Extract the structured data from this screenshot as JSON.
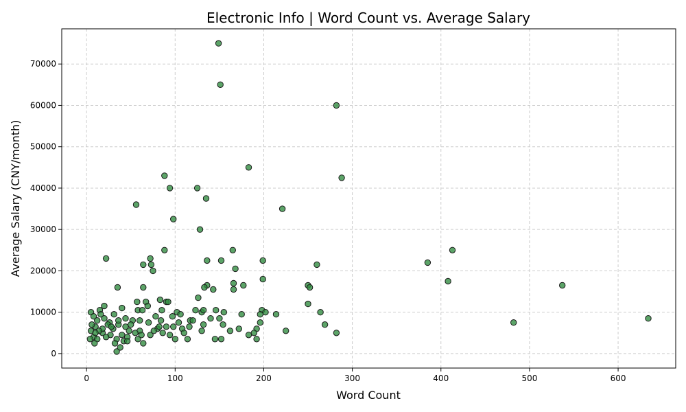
{
  "chart_data": {
    "type": "scatter",
    "title": "Electronic Info | Word Count vs. Average Salary",
    "xlabel": "Word Count",
    "ylabel": "Average Salary (CNY/month)",
    "xlim": [
      -28,
      665
    ],
    "ylim": [
      -3500,
      78500
    ],
    "xticks": [
      0,
      100,
      200,
      300,
      400,
      500,
      600
    ],
    "yticks": [
      0,
      10000,
      20000,
      30000,
      40000,
      50000,
      60000,
      70000
    ],
    "grid": true,
    "point_color": "#2e8b3e",
    "point_edge_color": "#1a1a1a",
    "points": [
      [
        149,
        75000
      ],
      [
        151,
        65000
      ],
      [
        282,
        60000
      ],
      [
        183,
        45000
      ],
      [
        88,
        43000
      ],
      [
        288,
        42500
      ],
      [
        94,
        40000
      ],
      [
        125,
        40000
      ],
      [
        135,
        37500
      ],
      [
        56,
        36000
      ],
      [
        221,
        35000
      ],
      [
        98,
        32500
      ],
      [
        128,
        30000
      ],
      [
        88,
        25000
      ],
      [
        165,
        25000
      ],
      [
        413,
        25000
      ],
      [
        22,
        23000
      ],
      [
        72,
        23000
      ],
      [
        64,
        21500
      ],
      [
        73,
        21500
      ],
      [
        136,
        22500
      ],
      [
        152,
        22500
      ],
      [
        199,
        22500
      ],
      [
        260,
        21500
      ],
      [
        385,
        22000
      ],
      [
        168,
        20500
      ],
      [
        75,
        20000
      ],
      [
        199,
        18000
      ],
      [
        408,
        17500
      ],
      [
        136,
        16500
      ],
      [
        166,
        17000
      ],
      [
        177,
        16500
      ],
      [
        250,
        16500
      ],
      [
        252,
        16000
      ],
      [
        537,
        16500
      ],
      [
        35,
        16000
      ],
      [
        64,
        16000
      ],
      [
        133,
        16000
      ],
      [
        143,
        15500
      ],
      [
        166,
        15500
      ],
      [
        126,
        13500
      ],
      [
        57,
        12500
      ],
      [
        67,
        12500
      ],
      [
        83,
        13000
      ],
      [
        90,
        12500
      ],
      [
        92,
        12500
      ],
      [
        250,
        12000
      ],
      [
        20,
        11500
      ],
      [
        40,
        11000
      ],
      [
        69,
        11500
      ],
      [
        5,
        10000
      ],
      [
        15,
        10500
      ],
      [
        58,
        10500
      ],
      [
        63,
        10500
      ],
      [
        85,
        10500
      ],
      [
        102,
        10000
      ],
      [
        106,
        9500
      ],
      [
        123,
        10500
      ],
      [
        130,
        10000
      ],
      [
        132,
        10500
      ],
      [
        146,
        10500
      ],
      [
        155,
        10000
      ],
      [
        198,
        10500
      ],
      [
        202,
        10000
      ],
      [
        264,
        10000
      ],
      [
        482,
        7500
      ],
      [
        634,
        8500
      ],
      [
        8,
        9000
      ],
      [
        31,
        9500
      ],
      [
        44,
        8500
      ],
      [
        52,
        8000
      ],
      [
        78,
        9000
      ],
      [
        97,
        9000
      ],
      [
        140,
        8500
      ],
      [
        150,
        8500
      ],
      [
        175,
        9500
      ],
      [
        196,
        9500
      ],
      [
        214,
        9500
      ],
      [
        12,
        8000
      ],
      [
        26,
        7500
      ],
      [
        36,
        7000
      ],
      [
        60,
        8000
      ],
      [
        70,
        7500
      ],
      [
        84,
        8000
      ],
      [
        104,
        7500
      ],
      [
        117,
        8000
      ],
      [
        132,
        7000
      ],
      [
        154,
        7000
      ],
      [
        196,
        7500
      ],
      [
        269,
        7000
      ],
      [
        10,
        6500
      ],
      [
        30,
        6000
      ],
      [
        48,
        5500
      ],
      [
        60,
        5500
      ],
      [
        80,
        6000
      ],
      [
        90,
        6500
      ],
      [
        108,
        6000
      ],
      [
        116,
        6500
      ],
      [
        130,
        5500
      ],
      [
        162,
        5500
      ],
      [
        172,
        6000
      ],
      [
        192,
        6000
      ],
      [
        225,
        5500
      ],
      [
        282,
        5000
      ],
      [
        5,
        5500
      ],
      [
        18,
        5000
      ],
      [
        27,
        4500
      ],
      [
        40,
        4500
      ],
      [
        55,
        5000
      ],
      [
        72,
        4500
      ],
      [
        86,
        5000
      ],
      [
        94,
        4500
      ],
      [
        110,
        5000
      ],
      [
        183,
        4500
      ],
      [
        189,
        5000
      ],
      [
        8,
        4000
      ],
      [
        22,
        4000
      ],
      [
        34,
        3500
      ],
      [
        46,
        4000
      ],
      [
        58,
        3500
      ],
      [
        100,
        3500
      ],
      [
        114,
        3500
      ],
      [
        145,
        3500
      ],
      [
        152,
        3500
      ],
      [
        192,
        3500
      ],
      [
        12,
        3500
      ],
      [
        32,
        2500
      ],
      [
        64,
        2500
      ],
      [
        9,
        2500
      ],
      [
        38,
        1500
      ],
      [
        34,
        500
      ],
      [
        42,
        3000
      ],
      [
        76,
        5500
      ],
      [
        50,
        7000
      ],
      [
        18,
        6000
      ],
      [
        24,
        7000
      ],
      [
        6,
        7000
      ],
      [
        14,
        5500
      ],
      [
        44,
        6500
      ],
      [
        98,
        6500
      ],
      [
        36,
        8000
      ],
      [
        16,
        9500
      ],
      [
        28,
        6500
      ],
      [
        62,
        4500
      ],
      [
        82,
        6500
      ],
      [
        120,
        8000
      ],
      [
        4,
        3500
      ],
      [
        10,
        5000
      ],
      [
        20,
        8500
      ],
      [
        46,
        3000
      ]
    ]
  }
}
